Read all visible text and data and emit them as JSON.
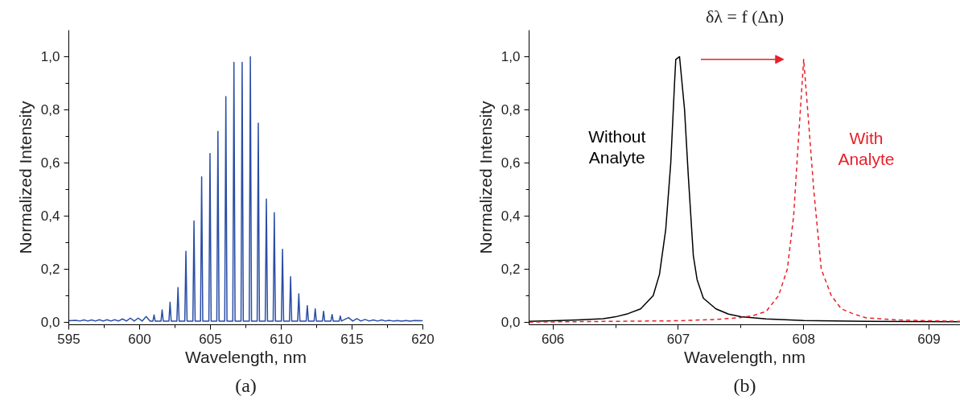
{
  "chart_data": [
    {
      "type": "line",
      "xlabel": "Wavelength, nm",
      "ylabel": "Normalized Intensity",
      "color": "#2a4ea6",
      "grid": false,
      "marker": "none",
      "line_style": "solid",
      "annotations": [
        "(a)"
      ],
      "xlim": [
        595,
        620
      ],
      "ylim": [
        -0.01,
        1.1
      ],
      "xticks": [
        595,
        {
          "value": 597.5,
          "label": null
        },
        600,
        {
          "value": 602.5,
          "label": null
        },
        605,
        {
          "value": 607.5,
          "label": null
        },
        610,
        {
          "value": 612.5,
          "label": null
        },
        615,
        {
          "value": 617.5,
          "label": null
        },
        620
      ],
      "yticks": [
        {
          "value": 0,
          "label": "0,0"
        },
        {
          "value": 0.1,
          "label": null
        },
        {
          "value": 0.2,
          "label": "0,2"
        },
        {
          "value": 0.3,
          "label": null
        },
        {
          "value": 0.4,
          "label": "0,4"
        },
        {
          "value": 0.5,
          "label": null
        },
        {
          "value": 0.6,
          "label": "0,6"
        },
        {
          "value": 0.7,
          "label": null
        },
        {
          "value": 0.8,
          "label": "0,8"
        },
        {
          "value": 0.9,
          "label": null
        },
        {
          "value": 1.0,
          "label": "1,0"
        }
      ],
      "x": [
        595.0,
        595.5,
        595.78,
        596.07,
        596.34,
        596.61,
        596.88,
        597.16,
        597.43,
        597.7,
        597.97,
        598.24,
        598.51,
        598.79,
        599.07,
        599.35,
        599.62,
        599.9,
        600.18,
        600.46,
        600.74,
        600.94,
        601.02,
        601.1,
        601.51,
        601.59,
        601.67,
        602.07,
        602.15,
        602.23,
        602.63,
        602.71,
        602.79,
        603.19,
        603.27,
        603.35,
        603.76,
        603.84,
        603.92,
        604.3,
        604.38,
        604.46,
        604.89,
        604.97,
        605.05,
        605.45,
        605.53,
        605.61,
        606.01,
        606.09,
        606.17,
        606.58,
        606.66,
        606.74,
        607.16,
        607.24,
        607.32,
        607.74,
        607.82,
        607.9,
        608.3,
        608.38,
        608.46,
        608.87,
        608.95,
        609.03,
        609.43,
        609.51,
        609.59,
        610.01,
        610.09,
        610.17,
        610.58,
        610.66,
        610.74,
        611.16,
        611.24,
        611.32,
        611.76,
        611.84,
        611.92,
        612.32,
        612.4,
        612.48,
        612.91,
        612.99,
        613.07,
        613.51,
        613.59,
        613.67,
        614.09,
        614.17,
        614.25,
        614.75,
        615.05,
        615.34,
        615.63,
        615.92,
        616.21,
        616.5,
        616.8,
        617.1,
        617.35,
        617.6,
        617.9,
        618.2,
        618.5,
        618.8,
        619.1,
        619.4,
        620.0
      ],
      "values": [
        0.005,
        0.007,
        0.004,
        0.008,
        0.004,
        0.008,
        0.004,
        0.009,
        0.004,
        0.009,
        0.004,
        0.009,
        0.004,
        0.012,
        0.004,
        0.015,
        0.004,
        0.015,
        0.004,
        0.021,
        0.004,
        0.004,
        0.027,
        0.004,
        0.004,
        0.046,
        0.004,
        0.004,
        0.075,
        0.004,
        0.004,
        0.13,
        0.004,
        0.004,
        0.267,
        0.004,
        0.004,
        0.381,
        0.004,
        0.004,
        0.547,
        0.004,
        0.004,
        0.635,
        0.004,
        0.004,
        0.719,
        0.004,
        0.004,
        0.85,
        0.004,
        0.004,
        0.979,
        0.004,
        0.004,
        0.979,
        0.004,
        0.004,
        1.0,
        0.004,
        0.004,
        0.75,
        0.004,
        0.004,
        0.464,
        0.004,
        0.004,
        0.412,
        0.004,
        0.004,
        0.274,
        0.004,
        0.004,
        0.171,
        0.004,
        0.004,
        0.107,
        0.004,
        0.004,
        0.062,
        0.004,
        0.004,
        0.05,
        0.004,
        0.004,
        0.041,
        0.004,
        0.004,
        0.029,
        0.004,
        0.004,
        0.023,
        0.004,
        0.017,
        0.004,
        0.013,
        0.004,
        0.01,
        0.004,
        0.008,
        0.004,
        0.008,
        0.004,
        0.007,
        0.004,
        0.006,
        0.004,
        0.006,
        0.004,
        0.006,
        0.005
      ]
    },
    {
      "type": "line",
      "title": "δλ = f (Δn)",
      "xlabel": "Wavelength, nm",
      "ylabel": "Normalized Intensity",
      "grid": false,
      "marker": "none",
      "annotations": [
        "(b)"
      ],
      "xlim": [
        605.81,
        609.25
      ],
      "ylim": [
        -0.01,
        1.1
      ],
      "xticks": [
        606,
        {
          "value": 606.5,
          "label": null
        },
        607,
        {
          "value": 607.5,
          "label": null
        },
        608,
        {
          "value": 608.5,
          "label": null
        },
        609
      ],
      "yticks": [
        {
          "value": 0,
          "label": "0,0"
        },
        {
          "value": 0.1,
          "label": null
        },
        {
          "value": 0.2,
          "label": "0,2"
        },
        {
          "value": 0.3,
          "label": null
        },
        {
          "value": 0.4,
          "label": "0,4"
        },
        {
          "value": 0.5,
          "label": null
        },
        {
          "value": 0.6,
          "label": "0,6"
        },
        {
          "value": 0.7,
          "label": null
        },
        {
          "value": 0.8,
          "label": "0,8"
        },
        {
          "value": 0.9,
          "label": null
        },
        {
          "value": 1.0,
          "label": "1,0"
        }
      ],
      "series": [
        {
          "name": "Without\nAnalyte",
          "color": "#000000",
          "line_style": "solid",
          "x": [
            605.81,
            606.0,
            606.2,
            606.4,
            606.5,
            606.6,
            606.7,
            606.8,
            606.85,
            606.9,
            606.94,
            606.97,
            606.98,
            607.01,
            607.05,
            607.08,
            607.12,
            607.15,
            607.2,
            607.3,
            607.4,
            607.5,
            607.7,
            608.0,
            608.5,
            609.25
          ],
          "values": [
            0.003,
            0.005,
            0.008,
            0.013,
            0.02,
            0.032,
            0.05,
            0.1,
            0.18,
            0.35,
            0.6,
            0.9,
            0.99,
            1.0,
            0.8,
            0.55,
            0.25,
            0.16,
            0.09,
            0.05,
            0.03,
            0.02,
            0.012,
            0.006,
            0.003,
            0.001
          ]
        },
        {
          "name": "With\nAnalyte",
          "color": "#e8202a",
          "line_style": "dashed",
          "x": [
            605.81,
            606.5,
            607.0,
            607.3,
            607.5,
            607.6,
            607.7,
            607.8,
            607.87,
            607.92,
            607.96,
            608.0,
            608.04,
            608.08,
            608.14,
            608.22,
            608.3,
            608.4,
            608.5,
            608.75,
            609.0,
            609.25
          ],
          "values": [
            0.0,
            0.003,
            0.005,
            0.01,
            0.017,
            0.025,
            0.04,
            0.1,
            0.2,
            0.4,
            0.7,
            0.99,
            0.75,
            0.5,
            0.2,
            0.1,
            0.05,
            0.03,
            0.016,
            0.008,
            0.005,
            0.003
          ]
        }
      ]
    }
  ]
}
